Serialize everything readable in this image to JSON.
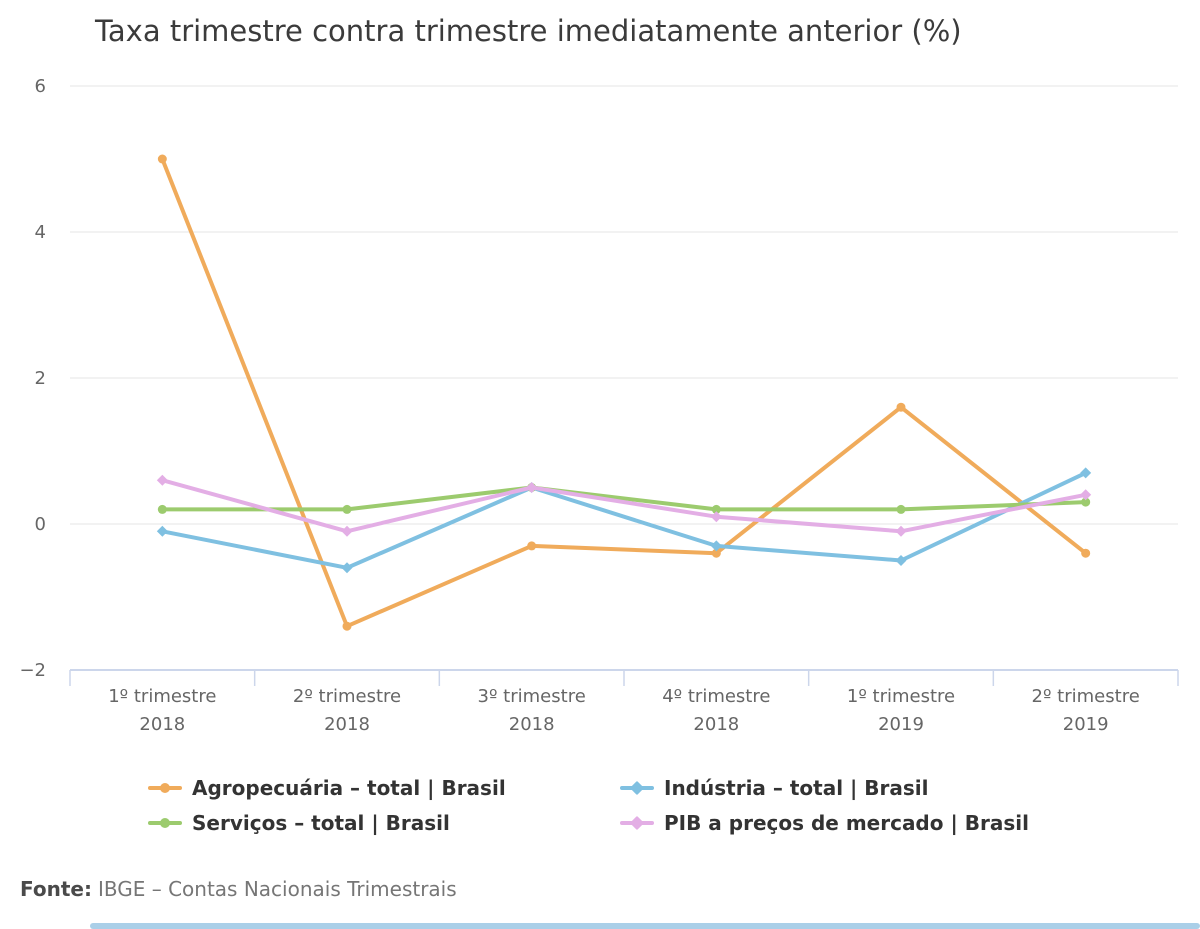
{
  "page": {
    "background": "#ffffff"
  },
  "chart_data": {
    "type": "line",
    "title": "Taxa trimestre contra trimestre imediatamente anterior (%)",
    "categories": [
      [
        "1º trimestre",
        "2018"
      ],
      [
        "2º trimestre",
        "2018"
      ],
      [
        "3º trimestre",
        "2018"
      ],
      [
        "4º trimestre",
        "2018"
      ],
      [
        "1º trimestre",
        "2019"
      ],
      [
        "2º trimestre",
        "2019"
      ]
    ],
    "series": [
      {
        "name": "Agropecuária – total | Brasil",
        "color": "#f0ab5b",
        "marker": "circle",
        "values": [
          5.0,
          -1.4,
          -0.3,
          -0.4,
          1.6,
          -0.4
        ]
      },
      {
        "name": "Indústria – total | Brasil",
        "color": "#7fc0e1",
        "marker": "diamond",
        "values": [
          -0.1,
          -0.6,
          0.5,
          -0.3,
          -0.5,
          0.7
        ]
      },
      {
        "name": "Serviços – total | Brasil",
        "color": "#9ccb6e",
        "marker": "circle",
        "values": [
          0.2,
          0.2,
          0.5,
          0.2,
          0.2,
          0.3
        ]
      },
      {
        "name": "PIB a preços de mercado | Brasil",
        "color": "#e3aee5",
        "marker": "diamond",
        "values": [
          0.6,
          -0.1,
          0.5,
          0.1,
          -0.1,
          0.4
        ]
      }
    ],
    "ylim": [
      -2,
      6
    ],
    "yticks": [
      6,
      4,
      2,
      0,
      -2
    ],
    "grid": true,
    "legend_position": "bottom",
    "axis_color": "#ccd6eb",
    "grid_color": "#e6e6e6",
    "tick_label_color": "#666666"
  },
  "footer": {
    "label": "Fonte:",
    "text": "IBGE – Contas Nacionais Trimestrais"
  },
  "scrollbar": {
    "color": "#aacfe8"
  }
}
